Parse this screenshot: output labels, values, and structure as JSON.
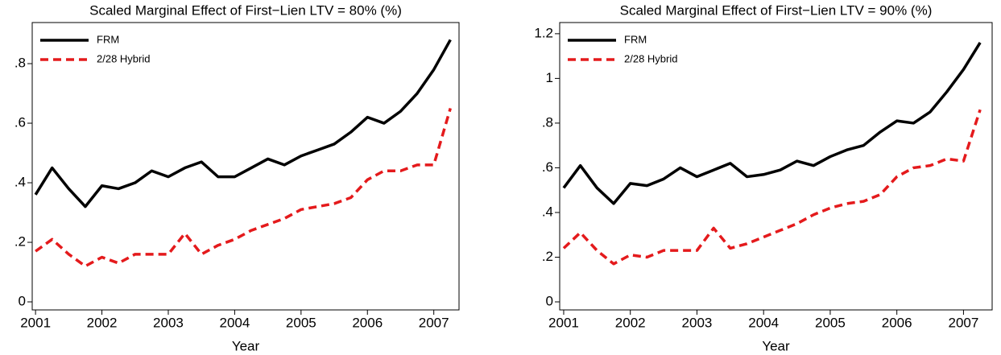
{
  "chart_data": [
    {
      "type": "line",
      "title": "Scaled Marginal Effect of First−Lien LTV = 80% (%)",
      "x_label": "Year",
      "x": [
        2001,
        2001.25,
        2001.5,
        2001.75,
        2002,
        2002.25,
        2002.5,
        2002.75,
        2003,
        2003.25,
        2003.5,
        2003.75,
        2004,
        2004.25,
        2004.5,
        2004.75,
        2005,
        2005.25,
        2005.5,
        2005.75,
        2006,
        2006.25,
        2006.5,
        2006.75,
        2007,
        2007.25
      ],
      "series": [
        {
          "name": "FRM",
          "color": "#000000",
          "dash": "solid",
          "values": [
            0.36,
            0.45,
            0.38,
            0.32,
            0.39,
            0.38,
            0.4,
            0.44,
            0.42,
            0.45,
            0.47,
            0.42,
            0.42,
            0.45,
            0.48,
            0.46,
            0.49,
            0.51,
            0.53,
            0.57,
            0.62,
            0.6,
            0.64,
            0.7,
            0.78,
            0.88
          ]
        },
        {
          "name": "2/28 Hybrid",
          "color": "#e41a1c",
          "dash": "dashed",
          "values": [
            0.17,
            0.21,
            0.16,
            0.12,
            0.15,
            0.13,
            0.16,
            0.16,
            0.16,
            0.23,
            0.16,
            0.19,
            0.21,
            0.24,
            0.26,
            0.28,
            0.31,
            0.32,
            0.33,
            0.35,
            0.41,
            0.44,
            0.44,
            0.46,
            0.46,
            0.65
          ]
        }
      ],
      "xlim": [
        2000.95,
        2007.38
      ],
      "xticks": [
        2001,
        2002,
        2003,
        2004,
        2005,
        2006,
        2007
      ],
      "ylim": [
        -0.027,
        0.938
      ],
      "yticks": [
        0,
        {
          "value": 0.2,
          "label": ".2"
        },
        {
          "value": 0.4,
          "label": ".4"
        },
        {
          "value": 0.6,
          "label": ".6"
        },
        {
          "value": 0.8,
          "label": ".8"
        }
      ],
      "legend": "upper-left"
    },
    {
      "type": "line",
      "title": "Scaled Marginal Effect of First−Lien LTV = 90% (%)",
      "x_label": "Year",
      "x": [
        2001,
        2001.25,
        2001.5,
        2001.75,
        2002,
        2002.25,
        2002.5,
        2002.75,
        2003,
        2003.25,
        2003.5,
        2003.75,
        2004,
        2004.25,
        2004.5,
        2004.75,
        2005,
        2005.25,
        2005.5,
        2005.75,
        2006,
        2006.25,
        2006.5,
        2006.75,
        2007,
        2007.25
      ],
      "series": [
        {
          "name": "FRM",
          "color": "#000000",
          "dash": "solid",
          "values": [
            0.51,
            0.61,
            0.51,
            0.44,
            0.53,
            0.52,
            0.55,
            0.6,
            0.56,
            0.59,
            0.62,
            0.56,
            0.57,
            0.59,
            0.63,
            0.61,
            0.65,
            0.68,
            0.7,
            0.76,
            0.81,
            0.8,
            0.85,
            0.94,
            1.04,
            1.16
          ]
        },
        {
          "name": "2/28 Hybrid",
          "color": "#e41a1c",
          "dash": "dashed",
          "values": [
            0.24,
            0.31,
            0.23,
            0.17,
            0.21,
            0.2,
            0.23,
            0.23,
            0.23,
            0.33,
            0.24,
            0.26,
            0.29,
            0.32,
            0.35,
            0.39,
            0.42,
            0.44,
            0.45,
            0.48,
            0.56,
            0.6,
            0.61,
            0.64,
            0.63,
            0.86
          ]
        }
      ],
      "xlim": [
        2000.94,
        2007.43
      ],
      "xticks": [
        2001,
        2002,
        2003,
        2004,
        2005,
        2006,
        2007
      ],
      "ylim": [
        -0.036,
        1.25
      ],
      "yticks": [
        0,
        {
          "value": 0.2,
          "label": ".2"
        },
        {
          "value": 0.4,
          "label": ".4"
        },
        {
          "value": 0.6,
          "label": ".6"
        },
        {
          "value": 0.8,
          "label": ".8"
        },
        1,
        {
          "value": 1.2,
          "label": "1.2"
        }
      ],
      "legend": "upper-left"
    }
  ]
}
